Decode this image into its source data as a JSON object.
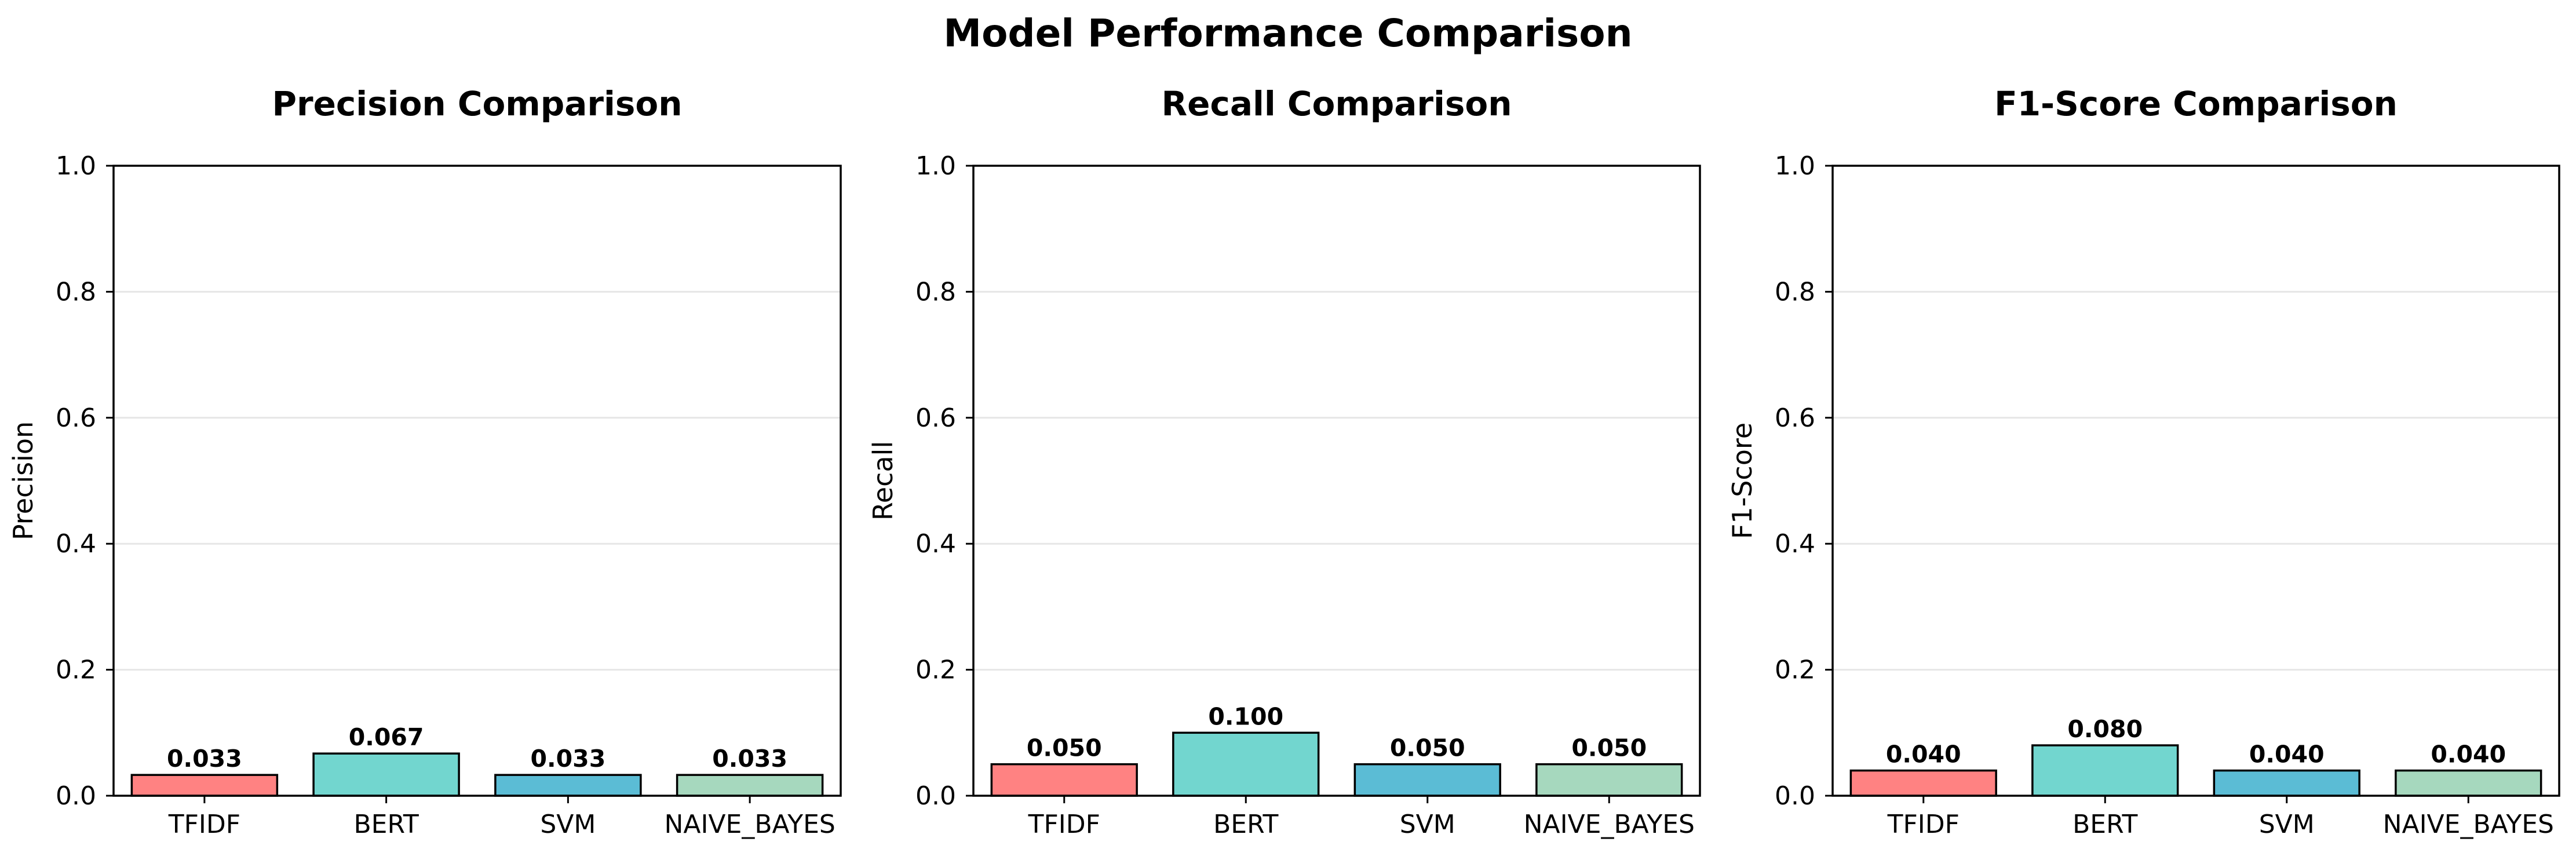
{
  "figure_title": "Model Performance Comparison",
  "chart_data": [
    {
      "type": "bar",
      "title": "Precision Comparison",
      "xlabel": "",
      "ylabel": "Precision",
      "ylim": [
        0,
        1.0
      ],
      "yticks": [
        "0.0",
        "0.2",
        "0.4",
        "0.6",
        "0.8",
        "1.0"
      ],
      "grid": "horizontal",
      "categories": [
        "TFIDF",
        "BERT",
        "SVM",
        "NAIVE_BAYES"
      ],
      "values": [
        0.033,
        0.067,
        0.033,
        0.033
      ],
      "data_labels": [
        "0.033",
        "0.067",
        "0.033",
        "0.033"
      ],
      "colors": [
        "#ff8282",
        "#72d6cf",
        "#5bbcd5",
        "#a6d8be"
      ]
    },
    {
      "type": "bar",
      "title": "Recall Comparison",
      "xlabel": "",
      "ylabel": "Recall",
      "ylim": [
        0,
        1.0
      ],
      "yticks": [
        "0.0",
        "0.2",
        "0.4",
        "0.6",
        "0.8",
        "1.0"
      ],
      "grid": "horizontal",
      "categories": [
        "TFIDF",
        "BERT",
        "SVM",
        "NAIVE_BAYES"
      ],
      "values": [
        0.05,
        0.1,
        0.05,
        0.05
      ],
      "data_labels": [
        "0.050",
        "0.100",
        "0.050",
        "0.050"
      ],
      "colors": [
        "#ff8282",
        "#72d6cf",
        "#5bbcd5",
        "#a6d8be"
      ]
    },
    {
      "type": "bar",
      "title": "F1-Score Comparison",
      "xlabel": "",
      "ylabel": "F1-Score",
      "ylim": [
        0,
        1.0
      ],
      "yticks": [
        "0.0",
        "0.2",
        "0.4",
        "0.6",
        "0.8",
        "1.0"
      ],
      "grid": "horizontal",
      "categories": [
        "TFIDF",
        "BERT",
        "SVM",
        "NAIVE_BAYES"
      ],
      "values": [
        0.04,
        0.08,
        0.04,
        0.04
      ],
      "data_labels": [
        "0.040",
        "0.080",
        "0.040",
        "0.040"
      ],
      "colors": [
        "#ff8282",
        "#72d6cf",
        "#5bbcd5",
        "#a6d8be"
      ]
    }
  ]
}
